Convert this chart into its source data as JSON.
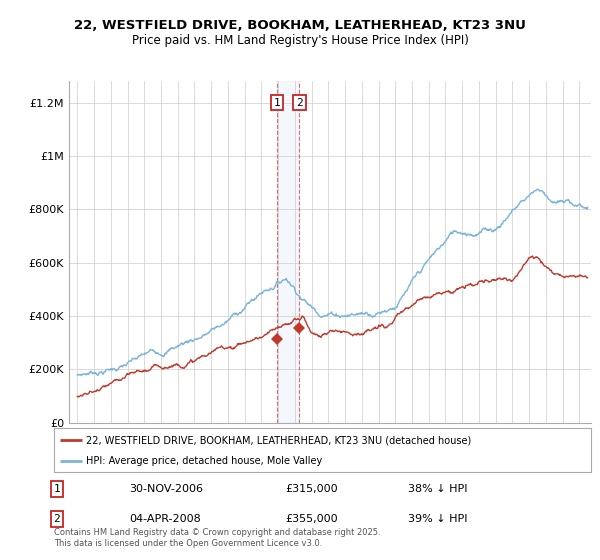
{
  "title_line1": "22, WESTFIELD DRIVE, BOOKHAM, LEATHERHEAD, KT23 3NU",
  "title_line2": "Price paid vs. HM Land Registry's House Price Index (HPI)",
  "ylabel_ticks": [
    "£0",
    "£200K",
    "£400K",
    "£600K",
    "£800K",
    "£1M",
    "£1.2M"
  ],
  "ytick_values": [
    0,
    200000,
    400000,
    600000,
    800000,
    1000000,
    1200000
  ],
  "ylim": [
    0,
    1280000
  ],
  "xlim_start": 1994.5,
  "xlim_end": 2025.7,
  "hpi_color": "#7ab4d8",
  "price_color": "#c0392b",
  "marker_color": "#c0392b",
  "transaction1_date": 2006.92,
  "transaction1_price": 315000,
  "transaction2_date": 2008.27,
  "transaction2_price": 355000,
  "legend_line1": "22, WESTFIELD DRIVE, BOOKHAM, LEATHERHEAD, KT23 3NU (detached house)",
  "legend_line2": "HPI: Average price, detached house, Mole Valley",
  "table_row1_num": "1",
  "table_row1_date": "30-NOV-2006",
  "table_row1_price": "£315,000",
  "table_row1_hpi": "38% ↓ HPI",
  "table_row2_num": "2",
  "table_row2_date": "04-APR-2008",
  "table_row2_price": "£355,000",
  "table_row2_hpi": "39% ↓ HPI",
  "footer": "Contains HM Land Registry data © Crown copyright and database right 2025.\nThis data is licensed under the Open Government Licence v3.0.",
  "background_color": "#ffffff",
  "grid_color": "#cccccc"
}
